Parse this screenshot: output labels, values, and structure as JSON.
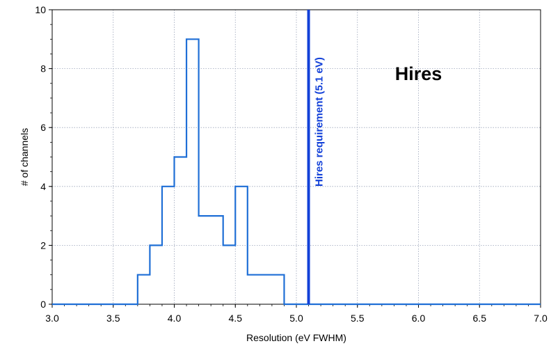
{
  "chart_data": {
    "type": "line",
    "style": "step-histogram",
    "xlabel": "Resolution (eV FWHM)",
    "ylabel": "# of channels",
    "xlim": [
      3.0,
      7.0
    ],
    "ylim": [
      0,
      10
    ],
    "x_ticks": [
      "3.0",
      "3.5",
      "4.0",
      "4.5",
      "5.0",
      "5.5",
      "6.0",
      "6.5",
      "7.0"
    ],
    "y_ticks": [
      "0",
      "2",
      "4",
      "6",
      "8",
      "10"
    ],
    "grid": true,
    "panel_label": "Hires",
    "series": [
      {
        "bin_edges": [
          3.0,
          3.7,
          3.8,
          3.9,
          4.0,
          4.1,
          4.2,
          4.4,
          4.5,
          4.6,
          4.9,
          7.0
        ],
        "counts": [
          0,
          1,
          2,
          4,
          5,
          9,
          3,
          2,
          4,
          1,
          0
        ],
        "color": "#1f6fd6"
      }
    ],
    "reference_line": {
      "x": 5.1,
      "label": "Hires requirement (5.1 eV)",
      "color": "#1240d8"
    }
  }
}
